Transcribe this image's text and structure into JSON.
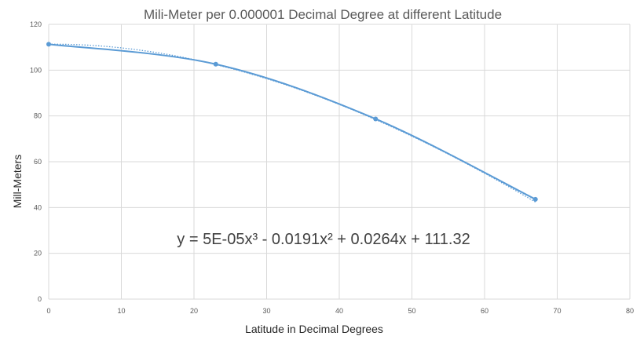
{
  "chart_data": {
    "type": "scatter",
    "title": "Mili-Meter per 0.000001 Decimal Degree at different Latitude",
    "xlabel": "Latitude in Decimal Degrees",
    "ylabel": "Mill-Meters",
    "xlim": [
      0,
      80
    ],
    "ylim": [
      0,
      120
    ],
    "x_ticks": [
      "0",
      "10",
      "20",
      "30",
      "40",
      "50",
      "60",
      "70",
      "80"
    ],
    "y_ticks": [
      "0",
      "20",
      "40",
      "60",
      "80",
      "100",
      "120"
    ],
    "grid": true,
    "legend": "none",
    "series": [
      {
        "x": [
          0,
          23,
          45,
          67
        ],
        "y": [
          111.3,
          102.6,
          78.7,
          43.6
        ],
        "color": "#5b9bd5",
        "smoothed_line": true
      }
    ],
    "trendline": {
      "type": "polynomial",
      "order": 3,
      "coefficients": [
        5e-05,
        -0.0191,
        0.0264,
        111.32
      ],
      "style": "dotted",
      "color": "#5b9bd5"
    },
    "equation_label": "y = 5E-05x³ - 0.0191x² + 0.0264x + 111.32"
  }
}
